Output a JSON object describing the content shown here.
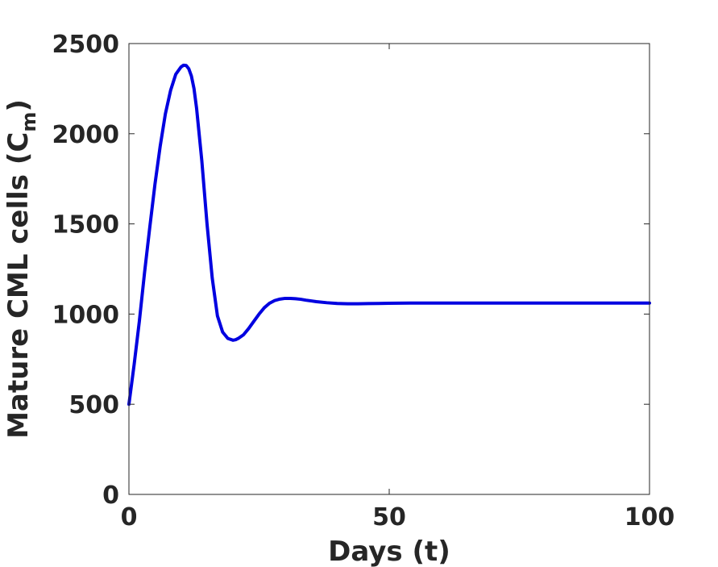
{
  "chart_data": {
    "type": "line",
    "title": "",
    "xlabel": "Days (t)",
    "ylabel_main": "Mature CML cells (C",
    "ylabel_sub": "m",
    "ylabel_close": ")",
    "xlim": [
      0,
      100
    ],
    "ylim": [
      0,
      2500
    ],
    "xticks": [
      0,
      50,
      100
    ],
    "yticks": [
      0,
      500,
      1000,
      1500,
      2000,
      2500
    ],
    "grid": false,
    "line_color": "#0000e0",
    "series": [
      {
        "x": [
          0,
          1,
          2,
          3,
          4,
          5,
          6,
          7,
          8,
          9,
          10,
          10.5,
          11,
          11.5,
          12,
          12.5,
          13,
          14,
          15,
          16,
          17,
          18,
          19,
          20,
          20.5,
          21,
          22,
          23,
          24,
          25,
          26,
          27,
          28,
          29,
          30,
          31,
          32,
          33,
          34,
          35,
          36,
          38,
          40,
          42,
          44,
          46,
          48,
          50,
          55,
          60,
          65,
          70,
          75,
          80,
          85,
          90,
          95,
          100
        ],
        "y": [
          500,
          720,
          960,
          1230,
          1480,
          1720,
          1930,
          2110,
          2240,
          2330,
          2370,
          2380,
          2378,
          2360,
          2320,
          2250,
          2140,
          1850,
          1500,
          1200,
          990,
          900,
          865,
          855,
          858,
          865,
          885,
          920,
          960,
          1000,
          1035,
          1060,
          1075,
          1083,
          1087,
          1087,
          1085,
          1082,
          1077,
          1073,
          1069,
          1063,
          1059,
          1057,
          1057,
          1058,
          1059,
          1060,
          1061,
          1061,
          1061,
          1061,
          1061,
          1061,
          1061,
          1061,
          1061,
          1061
        ]
      }
    ]
  }
}
